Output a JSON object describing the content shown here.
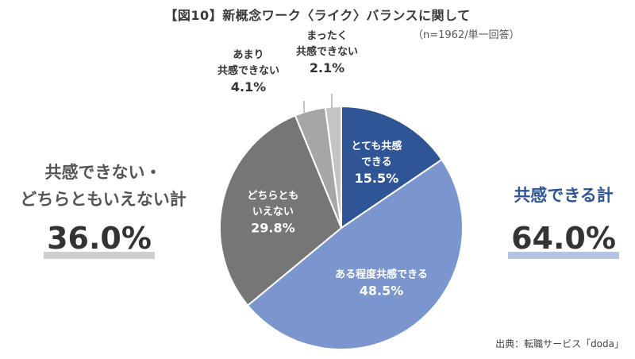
{
  "title": "【図10】新概念ワーク〈ライク〉バランスに関して",
  "subtitle": "（n=1962/単一回答）",
  "left_summary": {
    "label_line1": "共感できない・",
    "label_line2": "どちらともいえない計",
    "value": "36.0%"
  },
  "right_summary": {
    "label": "共感できる計",
    "value": "64.0%"
  },
  "source": "出典：転職サービス「doda」",
  "colors": {
    "strongly_agree": "#2f5597",
    "agree": "#7b96cf",
    "neutral": "#767676",
    "disagree": "#a6a6a6",
    "strongly_disagree": "#c4c4c4",
    "accent": "#2f5597"
  },
  "chart_data": {
    "type": "pie",
    "title": "【図10】新概念ワーク〈ライク〉バランスに関して",
    "slices": [
      {
        "label_lines": [
          "とても共感",
          "できる"
        ],
        "value": 15.5,
        "value_label": "15.5%",
        "color": "#2f5597",
        "inside": true
      },
      {
        "label_lines": [
          "ある程度共感できる"
        ],
        "value": 48.5,
        "value_label": "48.5%",
        "color": "#7b96cf",
        "inside": true
      },
      {
        "label_lines": [
          "どちらとも",
          "いえない"
        ],
        "value": 29.8,
        "value_label": "29.8%",
        "color": "#767676",
        "inside": true
      },
      {
        "label_lines": [
          "あまり",
          "共感できない"
        ],
        "value": 4.1,
        "value_label": "4.1%",
        "color": "#a6a6a6",
        "inside": false
      },
      {
        "label_lines": [
          "まったく",
          "共感できない"
        ],
        "value": 2.1,
        "value_label": "2.1%",
        "color": "#c4c4c4",
        "inside": false
      }
    ]
  }
}
